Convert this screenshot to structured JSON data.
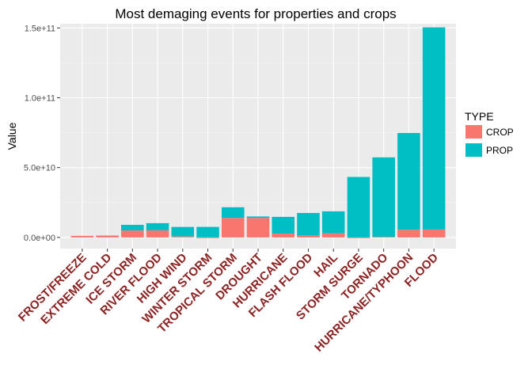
{
  "chart_data": {
    "type": "bar",
    "title": "Most demaging events for properties and crops",
    "ylabel": "Value",
    "xlabel": "",
    "ylim": [
      -8000000000.0,
      153000000000.0
    ],
    "y_ticks": [
      0,
      50000000000.0,
      100000000000.0,
      150000000000.0
    ],
    "y_tick_labels": [
      "0.0e+00",
      "5.0e+10",
      "1.0e+11",
      "1.5e+11"
    ],
    "grid": true,
    "legend_position": "right",
    "categories": [
      "FROST/FREEZE",
      "EXTREME COLD",
      "ICE STORM",
      "RIVER FLOOD",
      "HIGH WIND",
      "WINTER STORM",
      "TROPICAL STORM",
      "DROUGHT",
      "HURRICANE",
      "FLASH FLOOD",
      "HAIL",
      "STORM SURGE",
      "TORNADO",
      "HURRICANE/TYPHOON",
      "FLOOD"
    ],
    "series": [
      {
        "name": "CROP",
        "color": "#f8766d",
        "values": [
          1100000000.0,
          1300000000.0,
          5000000000.0,
          5100000000.0,
          700000000.0,
          30000000.0,
          14000000000.0,
          14000000000.0,
          2800000000.0,
          1400000000.0,
          3000000000.0,
          0.0,
          400000000.0,
          5500000000.0,
          5700000000.0
        ]
      },
      {
        "name": "PROP",
        "color": "#00bfc4",
        "values": [
          10000000.0,
          70000000.0,
          4000000000.0,
          5100000000.0,
          6800000000.0,
          7500000000.0,
          7600000000.0,
          1000000000.0,
          11900000000.0,
          16100000000.0,
          15700000000.0,
          43300000000.0,
          56900000000.0,
          69300000000.0,
          144700000000.0
        ]
      }
    ]
  },
  "legend": {
    "title": "TYPE"
  }
}
